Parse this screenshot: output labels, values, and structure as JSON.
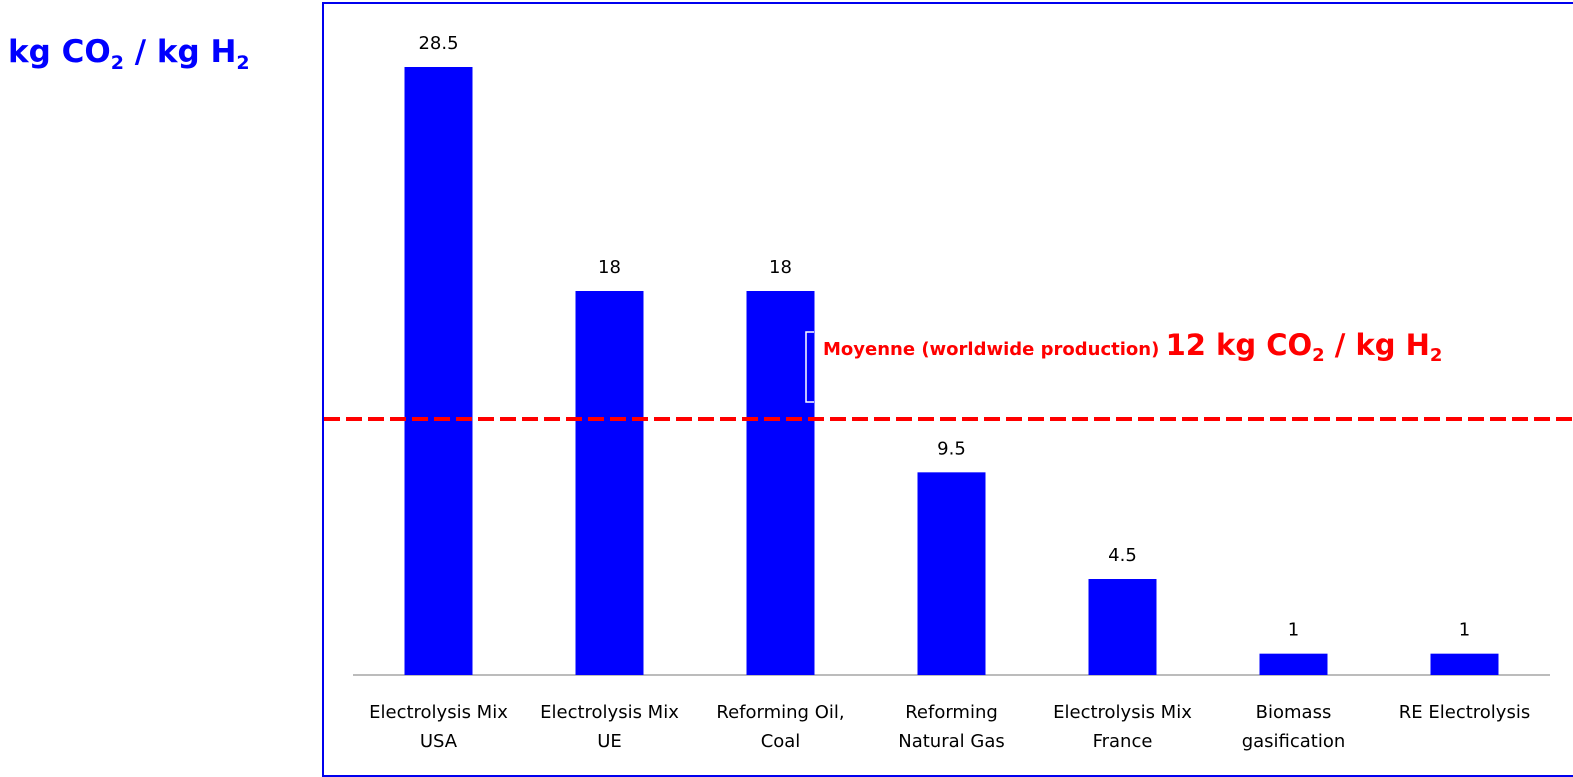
{
  "unit_label": {
    "prefix": "kg CO",
    "sub1": "2",
    "middle": " / kg H",
    "sub2": "2"
  },
  "average": {
    "label_small": "Moyenne  (worldwide production) ",
    "label_big_prefix": "12 kg CO",
    "label_big_sub1": "2",
    "label_big_middle": " / kg H",
    "label_big_sub2": "2",
    "value": 12,
    "color": "#ff0000"
  },
  "chart_data": {
    "type": "bar",
    "categories": [
      [
        "Electrolysis Mix",
        "USA"
      ],
      [
        "Electrolysis Mix",
        "UE"
      ],
      [
        "Reforming Oil,",
        "Coal"
      ],
      [
        "Reforming",
        "Natural Gas"
      ],
      [
        "Electrolysis Mix",
        "France"
      ],
      [
        "Biomass",
        "gasification"
      ],
      [
        "RE Electrolysis"
      ]
    ],
    "values": [
      28.5,
      18,
      18,
      9.5,
      4.5,
      1,
      1
    ],
    "value_labels": [
      "28.5",
      "18",
      "18",
      "9.5",
      "4.5",
      "1",
      "1"
    ],
    "ylabel": "kg CO2 / kg H2",
    "ylim": [
      0,
      30
    ],
    "grid": false,
    "bar_color": "#0000ff",
    "reference_line": {
      "value": 12,
      "style": "dashed",
      "color": "#ff0000"
    }
  }
}
